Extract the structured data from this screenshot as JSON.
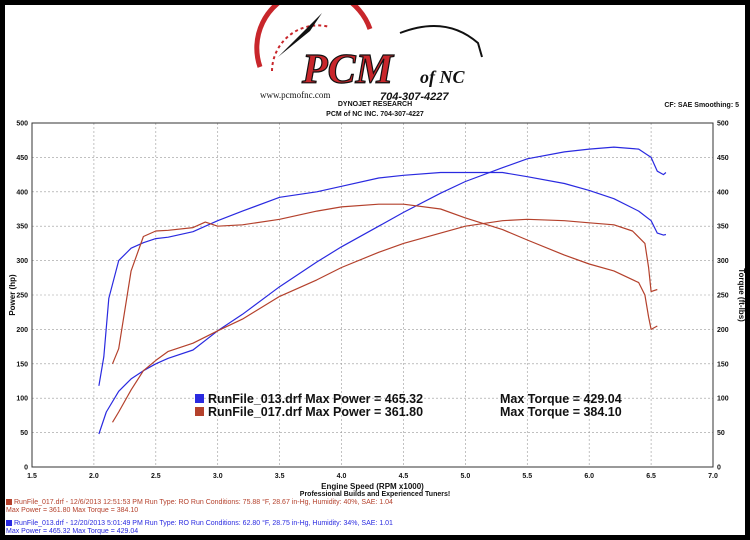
{
  "header": {
    "logo_text": "PCM",
    "logo_suffix": "of NC",
    "phone": "704-307-4227",
    "website": "www.pcmofnc.com",
    "line1": "DYNOJET RESEARCH",
    "line2": "PCM of NC INC. 704-307-4227",
    "settings": "CF: SAE  Smoothing: 5"
  },
  "footer": {
    "tagline": "Professional Builds and Experienced Tuners!",
    "run017": {
      "header": "RunFile_017.drf - 12/6/2013 12:51:53 PM  Run Type: RO  Run Conditions: 75.88 °F, 28.67 in-Hg,  Humidity:  40%, SAE: 1.04",
      "stats": "Max Power = 361.80   Max Torque = 384.10"
    },
    "run013": {
      "header": "RunFile_013.drf - 12/20/2013 5:01:49 PM  Run Type: RO  Run Conditions: 62.80 °F, 28.75 in-Hg,  Humidity:  34%, SAE: 1.01",
      "stats": "Max Power = 465.32   Max Torque = 429.04"
    }
  },
  "chart_data": {
    "type": "line",
    "title": "",
    "xlabel": "Engine Speed (RPM x1000)",
    "ylabel_left": "Power (hp)",
    "ylabel_right": "Torque (ft-lbs)",
    "xlim": [
      1.5,
      7.0
    ],
    "ylim": [
      0,
      500
    ],
    "x_ticks": [
      1.5,
      2.0,
      2.5,
      3.0,
      3.5,
      4.0,
      4.5,
      5.0,
      5.5,
      6.0,
      6.5,
      7.0
    ],
    "y_ticks": [
      0,
      50,
      100,
      150,
      200,
      250,
      300,
      350,
      400,
      450,
      500
    ],
    "grid": true,
    "legend": [
      {
        "name": "RunFile_013.drf",
        "text": "RunFile_013.drf Max Power = 465.32",
        "torque_text": "Max Torque = 429.04",
        "color": "#2a2ae0"
      },
      {
        "name": "RunFile_017.drf",
        "text": "RunFile_017.drf Max Power = 361.80",
        "torque_text": "Max Torque = 384.10",
        "color": "#b4412c"
      }
    ],
    "series": [
      {
        "run": "RunFile_013.drf",
        "kind": "power",
        "color": "#2a2ae0",
        "x": [
          2.04,
          2.1,
          2.2,
          2.3,
          2.4,
          2.5,
          2.6,
          2.8,
          3.0,
          3.2,
          3.5,
          3.8,
          4.0,
          4.3,
          4.5,
          4.8,
          5.0,
          5.3,
          5.5,
          5.8,
          6.0,
          6.2,
          6.4,
          6.5,
          6.55,
          6.6,
          6.62
        ],
        "y": [
          48,
          80,
          110,
          128,
          140,
          150,
          158,
          170,
          198,
          222,
          262,
          298,
          320,
          350,
          370,
          398,
          415,
          435,
          448,
          458,
          462,
          465,
          462,
          450,
          430,
          425,
          428
        ]
      },
      {
        "run": "RunFile_013.drf",
        "kind": "torque",
        "color": "#2a2ae0",
        "x": [
          2.04,
          2.08,
          2.12,
          2.2,
          2.3,
          2.4,
          2.5,
          2.6,
          2.8,
          3.0,
          3.2,
          3.5,
          3.8,
          4.0,
          4.3,
          4.5,
          4.8,
          5.0,
          5.3,
          5.5,
          5.8,
          6.0,
          6.2,
          6.4,
          6.5,
          6.55,
          6.6,
          6.62
        ],
        "y": [
          118,
          160,
          245,
          300,
          318,
          326,
          332,
          334,
          342,
          358,
          372,
          392,
          400,
          408,
          420,
          424,
          428,
          428,
          428,
          422,
          412,
          402,
          390,
          372,
          358,
          340,
          337,
          338
        ]
      },
      {
        "run": "RunFile_017.drf",
        "kind": "power",
        "color": "#b4412c",
        "x": [
          2.15,
          2.2,
          2.3,
          2.4,
          2.5,
          2.6,
          2.8,
          3.0,
          3.2,
          3.5,
          3.8,
          4.0,
          4.3,
          4.5,
          4.8,
          5.0,
          5.3,
          5.5,
          5.8,
          6.0,
          6.2,
          6.35,
          6.45,
          6.48,
          6.5,
          6.55
        ],
        "y": [
          65,
          80,
          112,
          140,
          155,
          168,
          180,
          198,
          215,
          248,
          272,
          290,
          312,
          325,
          340,
          350,
          358,
          360,
          358,
          355,
          352,
          343,
          325,
          290,
          255,
          258
        ]
      },
      {
        "run": "RunFile_017.drf",
        "kind": "torque",
        "color": "#b4412c",
        "x": [
          2.15,
          2.2,
          2.3,
          2.4,
          2.5,
          2.6,
          2.8,
          2.9,
          3.0,
          3.2,
          3.5,
          3.8,
          4.0,
          4.3,
          4.5,
          4.8,
          5.0,
          5.3,
          5.5,
          5.8,
          6.0,
          6.2,
          6.4,
          6.45,
          6.48,
          6.5,
          6.55
        ],
        "y": [
          150,
          172,
          285,
          335,
          343,
          344,
          348,
          356,
          350,
          352,
          360,
          372,
          378,
          382,
          382,
          375,
          362,
          345,
          330,
          308,
          295,
          285,
          268,
          250,
          218,
          200,
          205
        ]
      }
    ]
  }
}
